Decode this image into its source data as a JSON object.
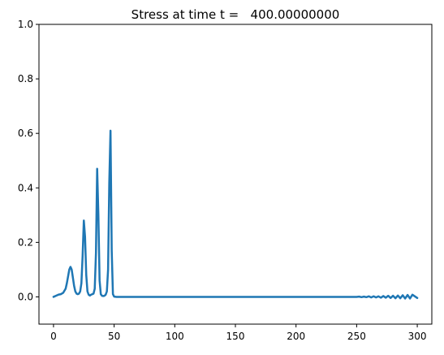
{
  "chart_data": {
    "type": "line",
    "title": "Stress at time t =   400.00000000",
    "xlabel": "",
    "ylabel": "",
    "xlim": [
      -12,
      312
    ],
    "ylim": [
      -0.1,
      1.0
    ],
    "xticks": [
      0,
      50,
      100,
      150,
      200,
      250,
      300
    ],
    "yticks": [
      0.0,
      0.2,
      0.4,
      0.6,
      0.8,
      1.0
    ],
    "xtick_labels": [
      "0",
      "50",
      "100",
      "150",
      "200",
      "250",
      "300"
    ],
    "ytick_labels": [
      "0.0",
      "0.2",
      "0.4",
      "0.6",
      "0.8",
      "1.0"
    ],
    "grid": false,
    "line_color": "#1f77b4",
    "series": [
      {
        "x": [
          0,
          2,
          4,
          6,
          8,
          10,
          11,
          12,
          13,
          14,
          15,
          16,
          17,
          18,
          19,
          20,
          21,
          22,
          23,
          24,
          25,
          26,
          27,
          28,
          29,
          30,
          31,
          32,
          33,
          34,
          35,
          36,
          37,
          38,
          39,
          40,
          41,
          42,
          43,
          44,
          45,
          46,
          47,
          48,
          49,
          50,
          52,
          55,
          60,
          80,
          100,
          150,
          200,
          240,
          245,
          250,
          252,
          254,
          256,
          258,
          260,
          262,
          264,
          266,
          268,
          270,
          272,
          274,
          276,
          278,
          280,
          282,
          284,
          286,
          288,
          290,
          292,
          294,
          296,
          298,
          300
        ],
        "values": [
          0.0,
          0.004,
          0.008,
          0.01,
          0.015,
          0.03,
          0.05,
          0.075,
          0.1,
          0.11,
          0.1,
          0.07,
          0.04,
          0.02,
          0.012,
          0.01,
          0.012,
          0.02,
          0.05,
          0.15,
          0.28,
          0.22,
          0.08,
          0.02,
          0.008,
          0.005,
          0.008,
          0.01,
          0.012,
          0.03,
          0.16,
          0.47,
          0.3,
          0.06,
          0.01,
          0.004,
          0.003,
          0.004,
          0.008,
          0.02,
          0.1,
          0.42,
          0.61,
          0.17,
          0.01,
          0.001,
          0.0,
          0.0,
          0.0,
          0.0,
          0.0,
          0.0,
          0.0,
          0.0,
          0.0,
          0.0,
          0.001,
          -0.001,
          0.001,
          -0.001,
          0.002,
          -0.002,
          0.002,
          -0.002,
          0.002,
          -0.003,
          0.003,
          -0.003,
          0.004,
          -0.004,
          0.004,
          -0.005,
          0.005,
          -0.005,
          0.006,
          -0.006,
          0.007,
          -0.006,
          0.008,
          0.002,
          -0.004
        ]
      }
    ]
  }
}
